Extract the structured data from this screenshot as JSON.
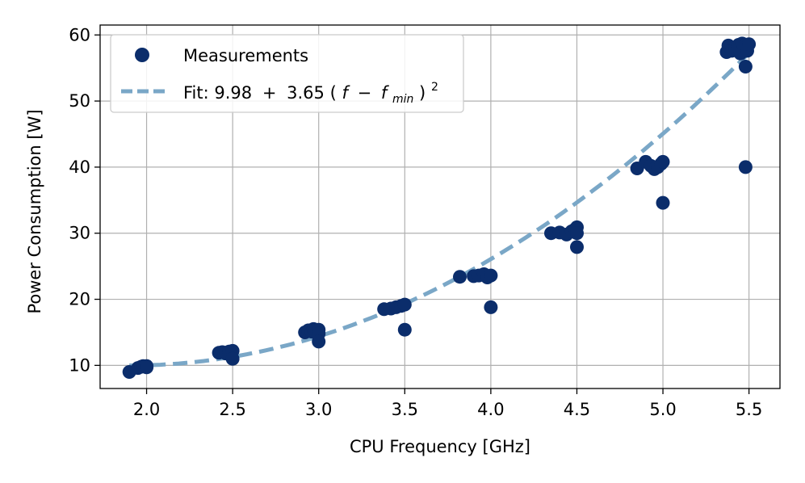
{
  "chart_data": {
    "type": "scatter",
    "title": "",
    "xlabel": "CPU Frequency [GHz]",
    "ylabel": "Power Consumption [W]",
    "xlim": [
      1.73,
      5.68
    ],
    "ylim": [
      6.5,
      61.5
    ],
    "xticks": [
      2.0,
      2.5,
      3.0,
      3.5,
      4.0,
      4.5,
      5.0,
      5.5
    ],
    "xtick_labels": [
      "2.0",
      "2.5",
      "3.0",
      "3.5",
      "4.0",
      "4.5",
      "5.0",
      "5.5"
    ],
    "yticks": [
      10,
      20,
      30,
      40,
      50,
      60
    ],
    "ytick_labels": [
      "10",
      "20",
      "30",
      "40",
      "50",
      "60"
    ],
    "grid": true,
    "legend_position": "top-left",
    "colors": {
      "measurements": "#0b2d6b",
      "fit": "#7aa7c7",
      "grid": "#b0b0b0"
    },
    "series": [
      {
        "name": "Measurements",
        "kind": "scatter",
        "x": [
          1.9,
          1.95,
          1.97,
          1.98,
          2.0,
          2.0,
          2.42,
          2.44,
          2.46,
          2.48,
          2.5,
          2.5,
          2.92,
          2.94,
          2.96,
          2.97,
          2.98,
          3.0,
          3.0,
          3.0,
          3.38,
          3.42,
          3.45,
          3.48,
          3.5,
          3.5,
          3.82,
          3.9,
          3.93,
          3.96,
          3.98,
          4.0,
          4.0,
          4.35,
          4.4,
          4.44,
          4.47,
          4.49,
          4.5,
          4.5,
          4.5,
          4.85,
          4.9,
          4.93,
          4.95,
          4.97,
          4.99,
          5.0,
          5.0,
          5.37,
          5.38,
          5.4,
          5.42,
          5.44,
          5.45,
          5.46,
          5.47,
          5.48,
          5.48,
          5.49,
          5.5
        ],
        "y": [
          9.0,
          9.6,
          9.8,
          9.9,
          9.7,
          9.9,
          11.9,
          12.0,
          11.8,
          12.1,
          12.2,
          11.0,
          15.0,
          15.3,
          15.1,
          15.5,
          15.2,
          15.4,
          14.8,
          13.6,
          18.5,
          18.6,
          18.8,
          19.0,
          19.2,
          15.4,
          23.4,
          23.5,
          23.6,
          23.8,
          23.3,
          23.6,
          18.8,
          30.0,
          30.1,
          29.8,
          30.3,
          30.6,
          30.9,
          30.0,
          27.9,
          39.8,
          40.8,
          40.2,
          39.7,
          40.0,
          40.5,
          40.8,
          34.6,
          57.4,
          58.4,
          57.6,
          58.0,
          58.5,
          57.2,
          58.7,
          58.2,
          40.0,
          55.2,
          57.6,
          58.6
        ]
      },
      {
        "name": "Fit: ",
        "kind": "line",
        "equation": {
          "a": "9.98",
          "b": "3.65",
          "f": "f",
          "fmin_base": "f",
          "fmin_sub": "min",
          "power": "2",
          "plus": "+",
          "minus": "−",
          "open": "(",
          "close": ")"
        },
        "fit_params": {
          "a": 9.98,
          "b": 3.65,
          "fmin": 1.9
        },
        "x_range": [
          1.9,
          5.5
        ]
      }
    ]
  }
}
